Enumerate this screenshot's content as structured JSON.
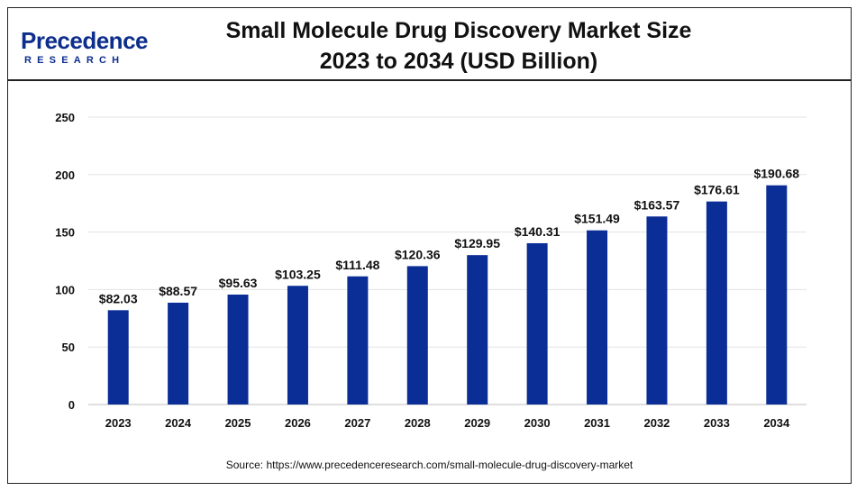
{
  "brand": {
    "name": "Precedence",
    "tagline": "RESEARCH"
  },
  "header": {
    "title_line1": "Small Molecule Drug Discovery Market Size",
    "title_line2": "2023 to 2034 (USD Billion)"
  },
  "footer": {
    "source": "Source: https://www.precedenceresearch.com/small-molecule-drug-discovery-market"
  },
  "colors": {
    "bar": "#0a2d96",
    "grid": "#e3e3e3",
    "text": "#111111",
    "brand": "#0d2e8c"
  },
  "chart_data": {
    "type": "bar",
    "title": "Small Molecule Drug Discovery Market Size 2023 to 2034 (USD Billion)",
    "xlabel": "",
    "ylabel": "",
    "categories": [
      "2023",
      "2024",
      "2025",
      "2026",
      "2027",
      "2028",
      "2029",
      "2030",
      "2031",
      "2032",
      "2033",
      "2034"
    ],
    "values": [
      82.03,
      88.57,
      95.63,
      103.25,
      111.48,
      120.36,
      129.95,
      140.31,
      151.49,
      163.57,
      176.61,
      190.68
    ],
    "data_labels": [
      "$82.03",
      "$88.57",
      "$95.63",
      "$103.25",
      "$111.48",
      "$120.36",
      "$129.95",
      "$140.31",
      "$151.49",
      "$163.57",
      "$176.61",
      "$190.68"
    ],
    "ylim": [
      0,
      250
    ],
    "yticks": [
      0,
      50,
      100,
      150,
      200,
      250
    ],
    "grid": true,
    "legend": false
  }
}
